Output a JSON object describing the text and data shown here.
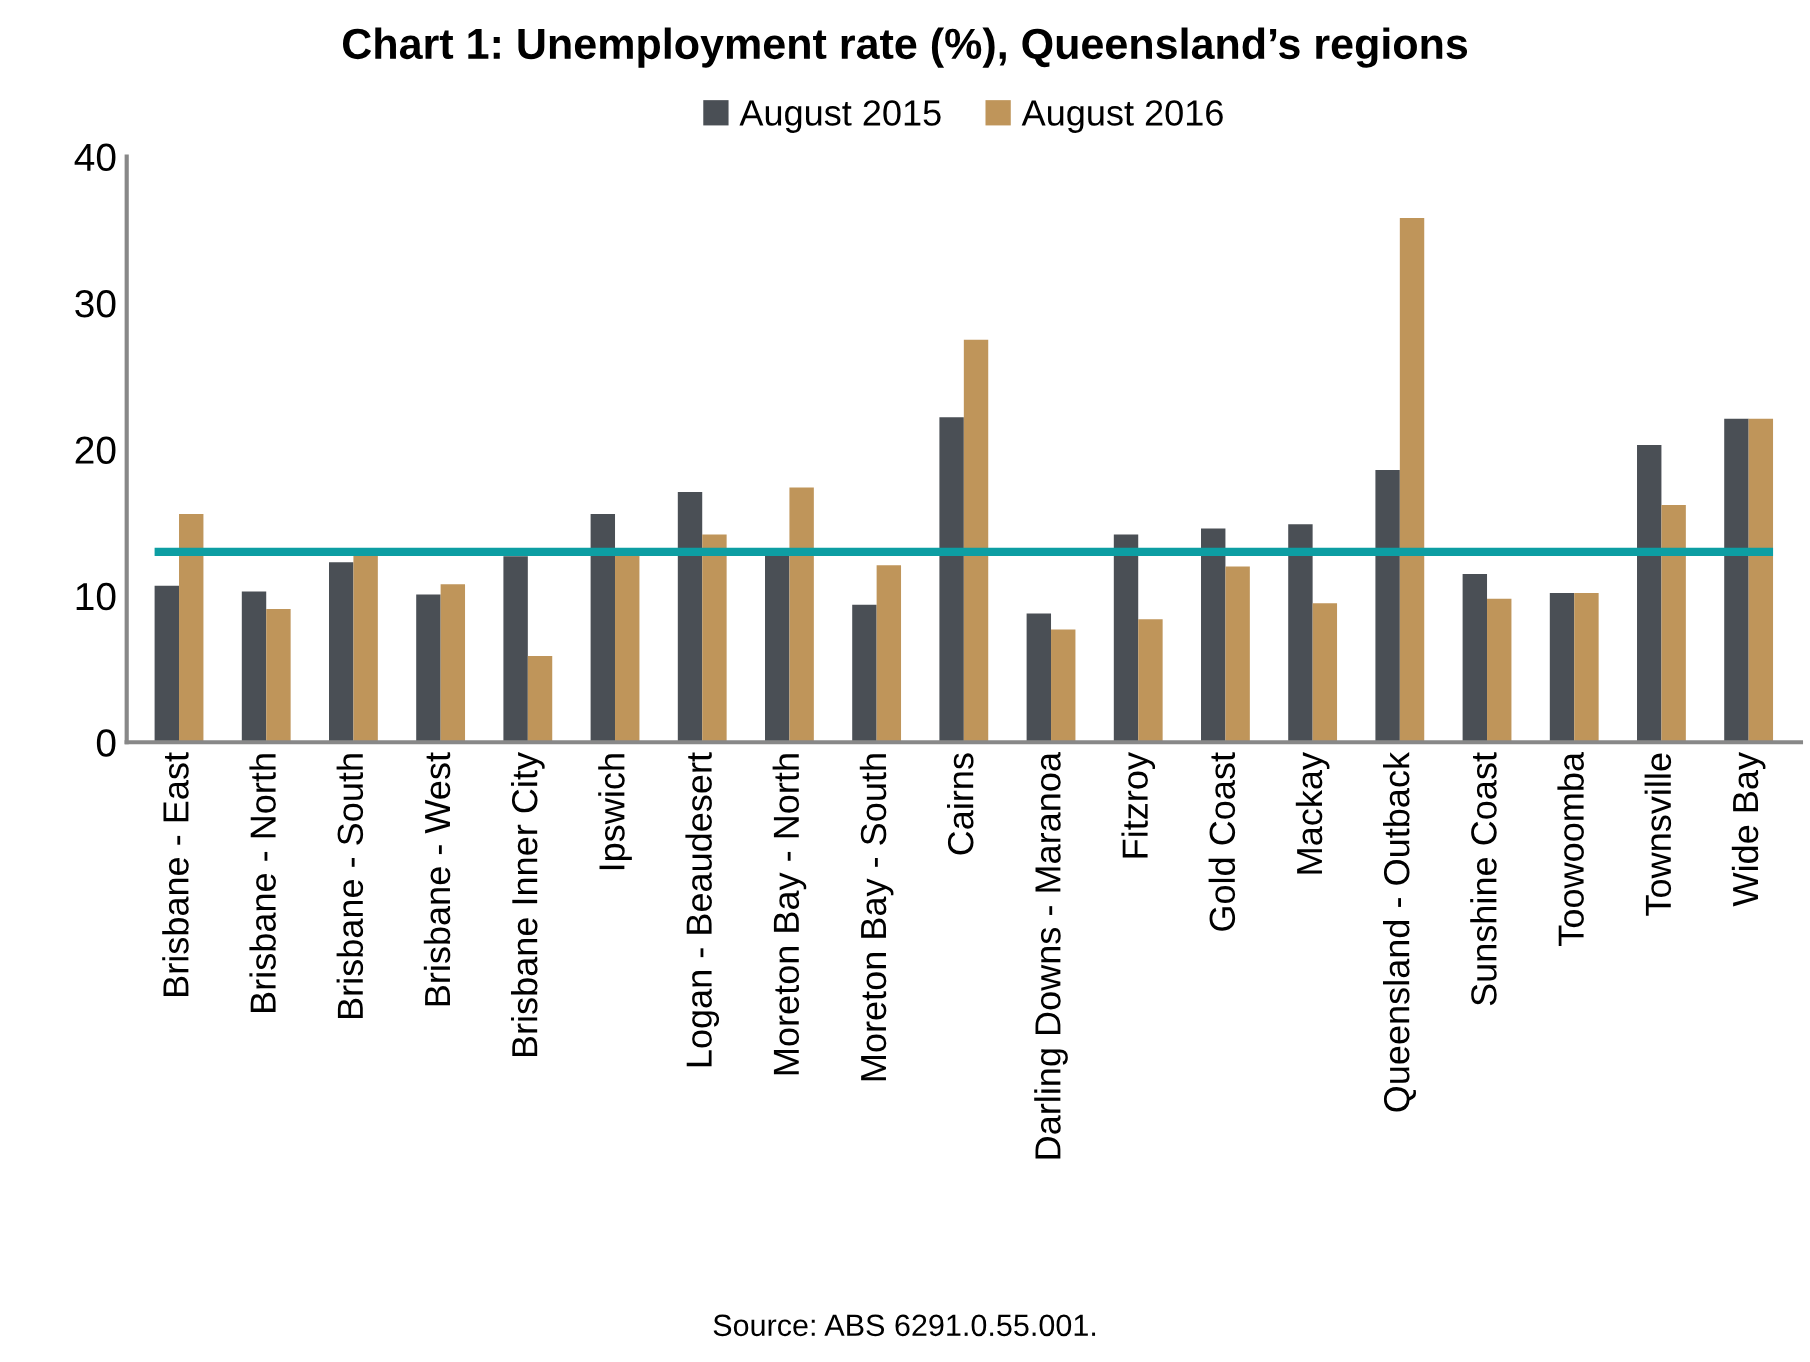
{
  "chart_data": {
    "type": "bar",
    "title": "Chart 1: Unemployment rate (%), Queensland’s regions",
    "categories": [
      "Brisbane - East",
      "Brisbane - North",
      "Brisbane - South",
      "Brisbane - West",
      "Brisbane Inner City",
      "Ipswich",
      "Logan - Beaudesert",
      "Moreton Bay - North",
      "Moreton Bay - South",
      "Cairns",
      "Darling Downs - Maranoa",
      "Fitzroy",
      "Gold Coast",
      "Mackay",
      "Queensland - Outback",
      "Sunshine Coast",
      "Toowoomba",
      "Townsville",
      "Wide Bay"
    ],
    "series": [
      {
        "name": "August 2015",
        "color": "#4a4f55",
        "values": [
          10.7,
          10.3,
          12.3,
          10.1,
          12.7,
          15.6,
          17.1,
          13.0,
          9.4,
          22.2,
          8.8,
          14.2,
          14.6,
          14.9,
          18.6,
          11.5,
          10.2,
          20.3,
          22.1
        ]
      },
      {
        "name": "August 2016",
        "color": "#bf955a",
        "values": [
          15.6,
          9.1,
          13.0,
          10.8,
          5.9,
          13.0,
          14.2,
          17.4,
          12.1,
          27.5,
          7.7,
          8.4,
          12.0,
          9.5,
          35.8,
          9.8,
          10.2,
          16.2,
          22.1
        ]
      }
    ],
    "ylim": [
      0,
      40
    ],
    "yticks": [
      0,
      10,
      20,
      30,
      40
    ],
    "ref_lines": [
      {
        "axis": "y",
        "value": 13.0,
        "color": "#0d9ea3"
      }
    ],
    "legend": "top",
    "grid": false,
    "annotations": [
      "Source: ABS 6291.0.55.001."
    ]
  }
}
